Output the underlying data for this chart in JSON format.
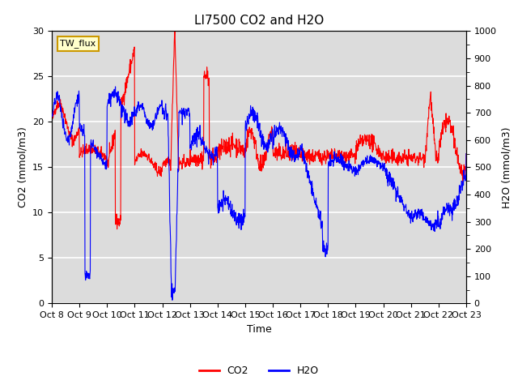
{
  "title": "LI7500 CO2 and H2O",
  "xlabel": "Time",
  "ylabel_left": "CO2 (mmol/m3)",
  "ylabel_right": "H2O (mmol/m3)",
  "xlim": [
    0,
    15
  ],
  "ylim_left": [
    0,
    30
  ],
  "ylim_right": [
    0,
    1000
  ],
  "yticks_left": [
    0,
    5,
    10,
    15,
    20,
    25,
    30
  ],
  "yticks_right": [
    0,
    100,
    200,
    300,
    400,
    500,
    600,
    700,
    800,
    900,
    1000
  ],
  "xtick_labels": [
    "Oct 8",
    "Oct 9",
    "Oct 10",
    "Oct 11",
    "Oct 12",
    "Oct 13",
    "Oct 14",
    "Oct 15",
    "Oct 16",
    "Oct 17",
    "Oct 18",
    "Oct 19",
    "Oct 20",
    "Oct 21",
    "Oct 22",
    "Oct 23"
  ],
  "legend_label_co2": "CO2",
  "legend_label_h2o": "H2O",
  "co2_color": "#FF0000",
  "h2o_color": "#0000FF",
  "box_label": "TW_flux",
  "box_facecolor": "#FFFFCC",
  "box_edgecolor": "#CC9900",
  "background_color": "#DCDCDC",
  "grid_color": "#FFFFFF",
  "title_fontsize": 11,
  "axis_fontsize": 9,
  "tick_fontsize": 8,
  "legend_fontsize": 9,
  "line_width": 0.8
}
